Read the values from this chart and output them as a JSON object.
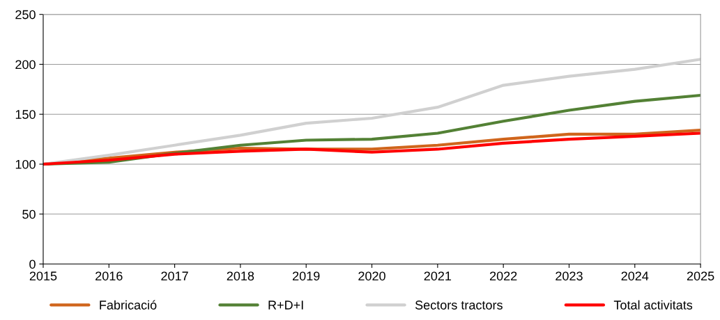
{
  "chart_data": {
    "type": "line",
    "x": [
      2015,
      2016,
      2017,
      2018,
      2019,
      2020,
      2021,
      2022,
      2023,
      2024,
      2025
    ],
    "series": [
      {
        "name": "Fabricació",
        "color": "#d0651c",
        "values": [
          100,
          106,
          112,
          116,
          115,
          115,
          119,
          125,
          130,
          130,
          134
        ]
      },
      {
        "name": "R+D+I",
        "color": "#538135",
        "values": [
          100,
          102,
          111,
          119,
          124,
          125,
          131,
          143,
          154,
          163,
          169
        ]
      },
      {
        "name": "Sectors tractors",
        "color": "#d0d0d0",
        "values": [
          100,
          109,
          119,
          129,
          141,
          146,
          157,
          179,
          188,
          195,
          205
        ]
      },
      {
        "name": "Total activitats",
        "color": "#ff0000",
        "values": [
          100,
          104,
          110,
          113,
          115,
          112,
          115,
          121,
          125,
          128,
          131
        ]
      }
    ],
    "xlim": [
      2015,
      2025
    ],
    "xticks": [
      2015,
      2016,
      2017,
      2018,
      2019,
      2020,
      2021,
      2022,
      2023,
      2024,
      2025
    ],
    "ylim": [
      0,
      250
    ],
    "yticks": [
      0,
      50,
      100,
      150,
      200,
      250
    ],
    "grid": "y",
    "legend": "bottom",
    "marker": "none",
    "line_style": "solid"
  }
}
